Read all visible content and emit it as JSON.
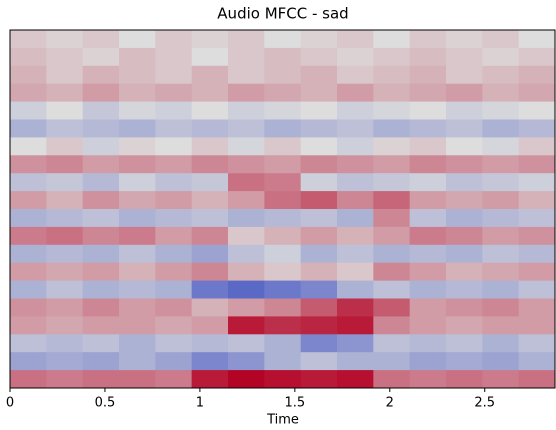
{
  "chart_data": {
    "type": "heatmap",
    "title": "Audio MFCC - sad",
    "xlabel": "Time",
    "xlim": [
      0,
      2.87
    ],
    "xticks": [
      0,
      0.5,
      1,
      1.5,
      2,
      2.5
    ],
    "colormap": "coolwarm",
    "values": [
      [
        0.1,
        0.05,
        0.1,
        0.0,
        0.1,
        0.05,
        0.1,
        0.0,
        0.05,
        0.1,
        0.0,
        0.1,
        0.05,
        0.1,
        0.0
      ],
      [
        0.15,
        0.1,
        0.05,
        0.15,
        0.1,
        0.0,
        0.1,
        0.15,
        0.1,
        0.05,
        0.1,
        0.15,
        0.1,
        0.05,
        0.1
      ],
      [
        0.2,
        0.1,
        0.2,
        0.15,
        0.1,
        0.2,
        0.1,
        0.15,
        0.2,
        0.1,
        0.15,
        0.2,
        0.1,
        0.15,
        0.2
      ],
      [
        0.25,
        0.2,
        0.3,
        0.2,
        0.25,
        0.2,
        0.3,
        0.25,
        0.2,
        0.3,
        0.2,
        0.25,
        0.3,
        0.2,
        0.25
      ],
      [
        -0.1,
        0.0,
        -0.15,
        -0.05,
        -0.1,
        0.0,
        -0.1,
        -0.05,
        0.0,
        -0.1,
        -0.05,
        0.0,
        -0.1,
        -0.05,
        0.0
      ],
      [
        -0.3,
        -0.2,
        -0.25,
        -0.3,
        -0.2,
        -0.25,
        -0.2,
        -0.3,
        -0.25,
        -0.2,
        -0.3,
        -0.25,
        -0.2,
        -0.3,
        -0.25
      ],
      [
        0.0,
        0.1,
        -0.1,
        0.05,
        0.0,
        0.1,
        -0.05,
        0.1,
        0.0,
        -0.1,
        0.05,
        0.1,
        0.0,
        -0.05,
        0.1
      ],
      [
        0.35,
        0.4,
        0.3,
        0.35,
        0.3,
        0.4,
        0.35,
        0.3,
        0.4,
        0.35,
        0.3,
        0.4,
        0.35,
        0.3,
        0.35
      ],
      [
        -0.2,
        -0.15,
        -0.25,
        -0.1,
        -0.2,
        -0.15,
        0.5,
        0.45,
        -0.1,
        -0.2,
        -0.15,
        -0.1,
        -0.2,
        -0.15,
        -0.1
      ],
      [
        0.3,
        0.2,
        0.35,
        0.25,
        0.3,
        0.2,
        0.3,
        0.5,
        0.6,
        0.4,
        0.55,
        0.3,
        0.25,
        0.3,
        0.2
      ],
      [
        -0.3,
        -0.25,
        -0.2,
        -0.3,
        -0.25,
        -0.2,
        -0.3,
        -0.25,
        -0.2,
        -0.3,
        0.4,
        -0.2,
        -0.3,
        -0.25,
        -0.2
      ],
      [
        0.45,
        0.5,
        0.4,
        0.45,
        0.3,
        0.4,
        0.1,
        0.2,
        0.3,
        0.2,
        0.3,
        0.45,
        0.4,
        0.3,
        0.35
      ],
      [
        -0.3,
        -0.25,
        -0.3,
        -0.2,
        -0.3,
        -0.4,
        -0.2,
        -0.1,
        -0.3,
        -0.2,
        -0.3,
        -0.25,
        -0.3,
        -0.2,
        -0.25
      ],
      [
        0.3,
        0.25,
        0.3,
        0.2,
        0.3,
        0.4,
        0.2,
        0.1,
        0.2,
        0.1,
        0.4,
        0.3,
        0.2,
        0.25,
        0.3
      ],
      [
        -0.3,
        -0.2,
        -0.3,
        -0.25,
        -0.3,
        -0.7,
        -0.8,
        -0.7,
        -0.6,
        -0.3,
        -0.2,
        -0.3,
        -0.25,
        -0.3,
        -0.2
      ],
      [
        0.35,
        0.3,
        0.4,
        0.3,
        0.35,
        0.2,
        0.3,
        0.4,
        0.6,
        0.8,
        0.6,
        0.3,
        0.35,
        0.4,
        0.3
      ],
      [
        0.3,
        0.25,
        0.3,
        0.3,
        0.25,
        0.3,
        0.9,
        0.8,
        0.85,
        0.9,
        0.4,
        0.3,
        0.25,
        0.3,
        0.3
      ],
      [
        -0.2,
        -0.25,
        -0.2,
        -0.3,
        -0.2,
        -0.25,
        -0.2,
        -0.3,
        -0.6,
        -0.5,
        -0.2,
        -0.25,
        -0.2,
        -0.3,
        -0.2
      ],
      [
        -0.4,
        -0.35,
        -0.4,
        -0.3,
        -0.4,
        -0.6,
        -0.5,
        -0.3,
        -0.2,
        -0.3,
        -0.3,
        -0.4,
        -0.35,
        -0.4,
        -0.3
      ],
      [
        0.5,
        0.45,
        0.5,
        0.5,
        0.45,
        0.9,
        1.0,
        0.95,
        0.9,
        0.95,
        0.5,
        0.45,
        0.5,
        0.45,
        0.5
      ]
    ]
  }
}
